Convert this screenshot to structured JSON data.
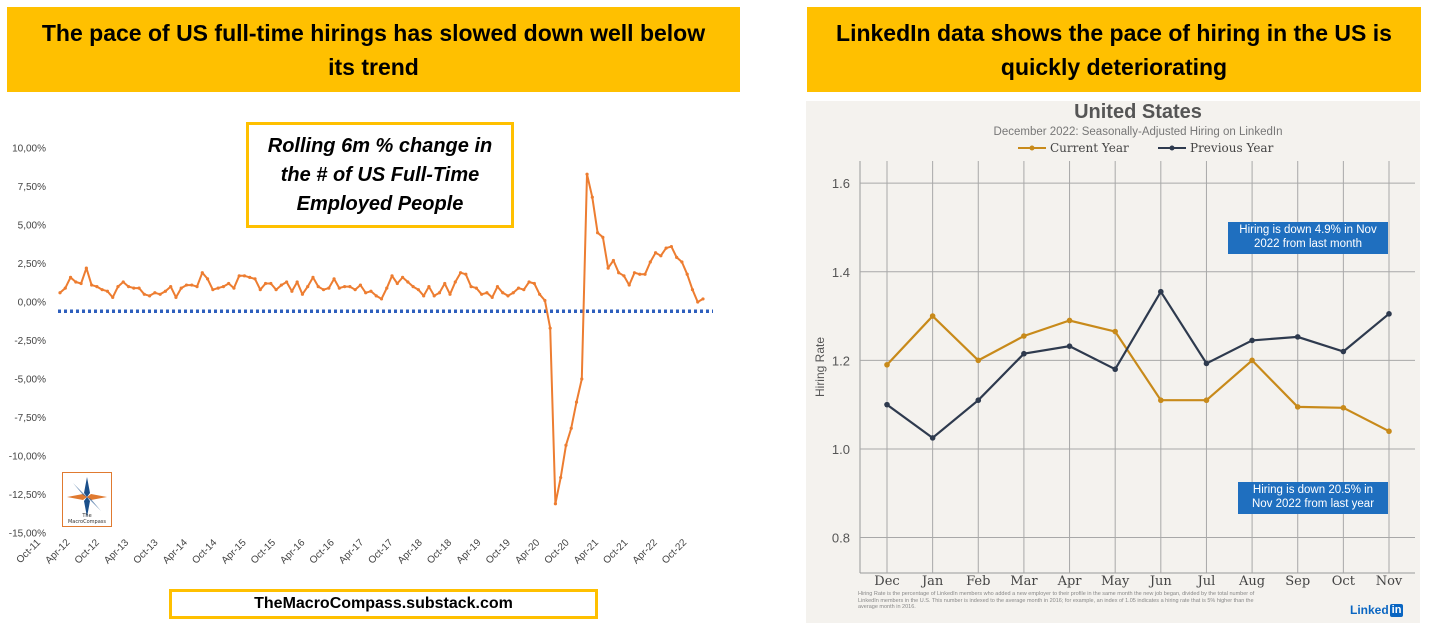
{
  "left_panel": {
    "banner": "The pace of US full-time hirings has slowed down well below its trend",
    "callout": "Rolling 6m % change in the # of US Full-Time Employed People",
    "footer": "TheMacroCompass.substack.com",
    "logo_text": "The MacroCompass"
  },
  "right_panel": {
    "banner": "LinkedIn data shows the pace of hiring in the US is quickly deteriorating",
    "box_top": "Hiring is down 4.9% in Nov 2022 from last month",
    "box_bottom": "Hiring is down 20.5% in Nov 2022 from last year",
    "logo": "Linked",
    "logo_in": "in"
  },
  "colors": {
    "banner": "#ffc000",
    "left_line": "#ed7d31",
    "trend": "#2e5fbd",
    "current_year": "#c88a1a",
    "previous_year": "#2e3a4e",
    "box": "#1f6fbf"
  },
  "chart_data": [
    {
      "type": "line",
      "title": "Rolling 6m % change in the # of US Full-Time Employed People",
      "xlabel": "",
      "ylabel": "",
      "ylim": [
        -15,
        10
      ],
      "y_ticks": [
        "10,00%",
        "7,50%",
        "5,00%",
        "2,50%",
        "0,00%",
        "-2,50%",
        "-5,00%",
        "-7,50%",
        "-10,00%",
        "-12,50%",
        "-15,00%"
      ],
      "x_ticks": [
        "Oct-11",
        "Apr-12",
        "Oct-12",
        "Apr-13",
        "Oct-13",
        "Apr-14",
        "Oct-14",
        "Apr-15",
        "Oct-15",
        "Apr-16",
        "Oct-16",
        "Apr-17",
        "Oct-17",
        "Apr-18",
        "Oct-18",
        "Apr-19",
        "Oct-19",
        "Apr-20",
        "Oct-20",
        "Apr-21",
        "Oct-21",
        "Apr-22",
        "Oct-22"
      ],
      "trend_value": -0.6,
      "series": [
        {
          "values": [
            0.6,
            0.9,
            1.6,
            1.3,
            1.2,
            2.2,
            1.1,
            1.0,
            0.8,
            0.7,
            0.3,
            1.0,
            1.3,
            1.0,
            0.9,
            0.9,
            0.5,
            0.4,
            0.6,
            0.5,
            0.7,
            1.0,
            0.3,
            0.9,
            1.1,
            1.1,
            1.0,
            1.9,
            1.5,
            0.8,
            0.9,
            1.0,
            1.2,
            0.9,
            1.7,
            1.7,
            1.6,
            1.5,
            0.8,
            1.2,
            1.2,
            0.8,
            1.1,
            1.3,
            0.7,
            1.3,
            0.5,
            1.0,
            1.6,
            1.0,
            0.8,
            0.9,
            1.5,
            0.9,
            1.0,
            1.0,
            0.8,
            1.1,
            0.6,
            0.7,
            0.4,
            0.2,
            0.9,
            1.7,
            1.2,
            1.6,
            1.3,
            1.0,
            0.8,
            0.4,
            1.0,
            0.4,
            0.6,
            1.2,
            0.5,
            1.3,
            1.9,
            1.8,
            1.0,
            0.9,
            0.5,
            0.6,
            0.3,
            1.0,
            0.6,
            0.4,
            0.6,
            0.9,
            0.8,
            1.3,
            1.2,
            0.5,
            0.1,
            -1.7,
            -13.1,
            -11.4,
            -9.3,
            -8.2,
            -6.5,
            -5.0,
            8.3,
            6.8,
            4.5,
            4.2,
            2.2,
            2.7,
            1.9,
            1.7,
            1.1,
            1.9,
            1.8,
            1.8,
            2.6,
            3.2,
            3.0,
            3.5,
            3.6,
            2.9,
            2.6,
            1.8,
            0.8,
            0.0,
            0.2
          ]
        }
      ]
    },
    {
      "type": "line",
      "title": "United States",
      "subtitle": "December 2022: Seasonally-Adjusted Hiring on LinkedIn",
      "xlabel": "",
      "ylabel": "Hiring Rate",
      "ylim": [
        0.72,
        1.65
      ],
      "y_ticks": [
        "1.6",
        "1.4",
        "1.2",
        "1.0",
        "0.8"
      ],
      "categories": [
        "Dec",
        "Jan",
        "Feb",
        "Mar",
        "Apr",
        "May",
        "Jun",
        "Jul",
        "Aug",
        "Sep",
        "Oct",
        "Nov"
      ],
      "legend": "top-center",
      "grid": true,
      "series": [
        {
          "name": "Current Year",
          "values": [
            1.19,
            1.3,
            1.2,
            1.255,
            1.29,
            1.265,
            1.11,
            1.11,
            1.2,
            1.095,
            1.093,
            1.04
          ]
        },
        {
          "name": "Previous Year",
          "values": [
            1.1,
            1.025,
            1.11,
            1.215,
            1.232,
            1.18,
            1.355,
            1.193,
            1.245,
            1.253,
            1.22,
            1.305
          ]
        }
      ],
      "footnote": "Hiring Rate is the percentage of LinkedIn members who added a new employer to their profile in the same month the new job began, divided by the total number of LinkedIn members in the U.S. This number is indexed to the average month in 2016; for example, an index of 1.05 indicates a hiring rate that is 5% higher than the average month in 2016."
    }
  ]
}
